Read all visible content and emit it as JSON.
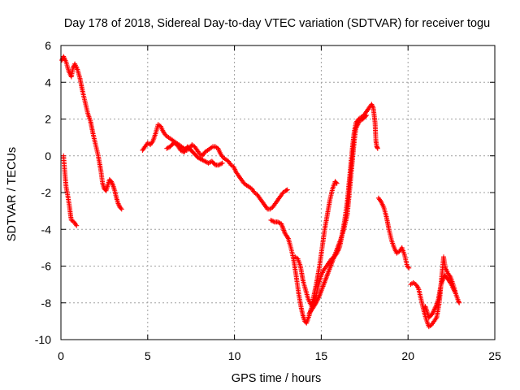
{
  "chart_data": {
    "type": "scatter",
    "title": "Day 178 of 2018, Sidereal Day-to-day VTEC variation (SDTVAR) for receiver togu",
    "xlabel": "GPS time / hours",
    "ylabel": "SDTVAR / TECUs",
    "xlim": [
      0,
      25
    ],
    "ylim": [
      -10,
      6
    ],
    "xticks": [
      0,
      5,
      10,
      15,
      20,
      25
    ],
    "yticks": [
      -10,
      -8,
      -6,
      -4,
      -2,
      0,
      2,
      4,
      6
    ],
    "xtick_labels": [
      "0",
      "5",
      "10",
      "15",
      "20",
      "25"
    ],
    "ytick_labels": [
      "-10",
      "-8",
      "-6",
      "-4",
      "-2",
      "0",
      "2",
      "4",
      "6"
    ],
    "grid": true,
    "marker": "plus",
    "color": "#ff0000",
    "series": [
      {
        "segments": [
          [
            [
              0.05,
              5.2
            ],
            [
              0.15,
              5.4
            ],
            [
              0.3,
              5.1
            ],
            [
              0.45,
              4.6
            ],
            [
              0.6,
              4.3
            ],
            [
              0.7,
              4.8
            ],
            [
              0.8,
              5.0
            ],
            [
              0.95,
              4.7
            ],
            [
              1.1,
              4.2
            ],
            [
              1.25,
              3.5
            ],
            [
              1.4,
              2.9
            ],
            [
              1.55,
              2.3
            ],
            [
              1.7,
              1.9
            ],
            [
              1.85,
              1.2
            ],
            [
              2.0,
              0.6
            ],
            [
              2.15,
              0.0
            ],
            [
              2.3,
              -0.8
            ],
            [
              2.4,
              -1.5
            ],
            [
              2.5,
              -1.8
            ],
            [
              2.6,
              -1.9
            ],
            [
              2.7,
              -1.6
            ],
            [
              2.8,
              -1.3
            ],
            [
              2.9,
              -1.4
            ],
            [
              3.0,
              -1.6
            ],
            [
              3.1,
              -1.9
            ],
            [
              3.2,
              -2.3
            ],
            [
              3.3,
              -2.6
            ],
            [
              3.4,
              -2.8
            ],
            [
              3.5,
              -2.9
            ]
          ],
          [
            [
              0.15,
              0.0
            ],
            [
              0.2,
              -0.6
            ],
            [
              0.25,
              -1.2
            ],
            [
              0.3,
              -1.7
            ],
            [
              0.4,
              -2.2
            ],
            [
              0.5,
              -2.8
            ],
            [
              0.55,
              -3.2
            ],
            [
              0.6,
              -3.5
            ],
            [
              0.75,
              -3.6
            ],
            [
              0.9,
              -3.8
            ]
          ],
          [
            [
              4.7,
              0.3
            ],
            [
              4.85,
              0.5
            ],
            [
              5.0,
              0.7
            ],
            [
              5.15,
              0.6
            ],
            [
              5.3,
              0.8
            ],
            [
              5.45,
              1.2
            ],
            [
              5.6,
              1.7
            ],
            [
              5.75,
              1.6
            ],
            [
              5.9,
              1.3
            ],
            [
              6.05,
              1.1
            ],
            [
              6.2,
              1.0
            ],
            [
              6.35,
              0.9
            ],
            [
              6.5,
              0.8
            ],
            [
              6.65,
              0.7
            ],
            [
              6.8,
              0.6
            ],
            [
              6.95,
              0.5
            ],
            [
              7.1,
              0.4
            ],
            [
              7.25,
              0.3
            ],
            [
              7.4,
              0.4
            ],
            [
              7.55,
              0.6
            ],
            [
              7.7,
              0.5
            ],
            [
              7.85,
              0.3
            ],
            [
              8.0,
              0.1
            ],
            [
              8.15,
              0.0
            ],
            [
              8.3,
              0.2
            ],
            [
              8.45,
              0.3
            ],
            [
              8.6,
              0.4
            ],
            [
              8.75,
              0.5
            ],
            [
              8.9,
              0.5
            ],
            [
              9.05,
              0.4
            ],
            [
              9.2,
              0.1
            ],
            [
              9.35,
              -0.1
            ],
            [
              9.5,
              -0.2
            ],
            [
              9.65,
              -0.3
            ],
            [
              9.8,
              -0.5
            ],
            [
              9.95,
              -0.6
            ],
            [
              10.1,
              -0.9
            ],
            [
              10.25,
              -1.1
            ],
            [
              10.4,
              -1.3
            ],
            [
              10.55,
              -1.5
            ],
            [
              10.7,
              -1.6
            ],
            [
              10.85,
              -1.7
            ],
            [
              11.0,
              -1.8
            ],
            [
              11.15,
              -2.0
            ],
            [
              11.3,
              -2.1
            ],
            [
              11.45,
              -2.3
            ],
            [
              11.6,
              -2.5
            ],
            [
              11.75,
              -2.7
            ],
            [
              11.9,
              -2.9
            ],
            [
              12.05,
              -2.9
            ],
            [
              12.2,
              -2.8
            ],
            [
              12.35,
              -2.6
            ],
            [
              12.5,
              -2.4
            ],
            [
              12.65,
              -2.2
            ],
            [
              12.8,
              -2.0
            ],
            [
              12.95,
              -1.9
            ],
            [
              13.05,
              -1.85
            ]
          ],
          [
            [
              6.1,
              0.4
            ],
            [
              6.3,
              0.5
            ],
            [
              6.5,
              0.7
            ],
            [
              6.7,
              0.6
            ],
            [
              6.9,
              0.3
            ],
            [
              7.1,
              0.2
            ],
            [
              7.3,
              0.5
            ],
            [
              7.5,
              0.3
            ],
            [
              7.7,
              0.1
            ],
            [
              7.9,
              -0.1
            ],
            [
              8.1,
              -0.2
            ],
            [
              8.3,
              -0.3
            ],
            [
              8.5,
              -0.4
            ],
            [
              8.7,
              -0.3
            ],
            [
              8.9,
              -0.5
            ],
            [
              9.1,
              -0.5
            ],
            [
              9.3,
              -0.4
            ]
          ],
          [
            [
              12.1,
              -3.5
            ],
            [
              12.3,
              -3.6
            ],
            [
              12.5,
              -3.6
            ],
            [
              12.7,
              -3.7
            ],
            [
              12.9,
              -4.2
            ],
            [
              13.1,
              -4.5
            ],
            [
              13.25,
              -5.0
            ],
            [
              13.4,
              -5.6
            ],
            [
              13.55,
              -6.5
            ],
            [
              13.7,
              -7.5
            ],
            [
              13.85,
              -8.3
            ],
            [
              13.95,
              -8.7
            ],
            [
              14.05,
              -9.0
            ],
            [
              14.15,
              -9.1
            ],
            [
              14.3,
              -8.7
            ],
            [
              14.45,
              -8.2
            ],
            [
              14.6,
              -7.5
            ],
            [
              14.75,
              -6.8
            ],
            [
              14.9,
              -6.0
            ],
            [
              15.05,
              -5.0
            ],
            [
              15.2,
              -4.0
            ],
            [
              15.35,
              -3.2
            ],
            [
              15.5,
              -2.4
            ],
            [
              15.65,
              -1.8
            ],
            [
              15.8,
              -1.4
            ],
            [
              15.9,
              -1.5
            ]
          ],
          [
            [
              13.5,
              -5.5
            ],
            [
              13.65,
              -5.6
            ],
            [
              13.8,
              -6.0
            ],
            [
              13.95,
              -6.8
            ],
            [
              14.1,
              -7.3
            ],
            [
              14.25,
              -7.8
            ],
            [
              14.4,
              -8.1
            ],
            [
              14.55,
              -8.0
            ],
            [
              14.7,
              -7.6
            ],
            [
              14.85,
              -7.0
            ],
            [
              15.0,
              -6.5
            ],
            [
              15.15,
              -6.2
            ],
            [
              15.3,
              -6.0
            ],
            [
              15.45,
              -5.8
            ],
            [
              15.6,
              -5.6
            ],
            [
              15.75,
              -5.5
            ],
            [
              15.9,
              -5.3
            ],
            [
              16.05,
              -5.0
            ],
            [
              16.2,
              -4.3
            ],
            [
              16.35,
              -3.5
            ],
            [
              16.5,
              -2.5
            ],
            [
              16.6,
              -1.5
            ],
            [
              16.7,
              -0.5
            ],
            [
              16.8,
              0.5
            ],
            [
              16.9,
              1.3
            ],
            [
              17.0,
              1.8
            ],
            [
              17.15,
              2.0
            ],
            [
              17.3,
              2.1
            ],
            [
              17.45,
              2.2
            ],
            [
              17.6,
              2.4
            ],
            [
              17.75,
              2.6
            ],
            [
              17.9,
              2.8
            ],
            [
              18.0,
              2.6
            ],
            [
              18.1,
              1.8
            ],
            [
              18.15,
              0.8
            ],
            [
              18.2,
              0.5
            ],
            [
              18.25,
              0.4
            ]
          ],
          [
            [
              14.3,
              -8.6
            ],
            [
              14.5,
              -8.3
            ],
            [
              14.7,
              -8.0
            ],
            [
              14.9,
              -7.6
            ],
            [
              15.1,
              -7.1
            ],
            [
              15.3,
              -6.6
            ],
            [
              15.5,
              -6.1
            ],
            [
              15.7,
              -5.6
            ],
            [
              15.9,
              -5.1
            ],
            [
              16.1,
              -4.6
            ],
            [
              16.3,
              -4.0
            ],
            [
              16.5,
              -3.2
            ],
            [
              16.6,
              -2.2
            ],
            [
              16.7,
              -1.2
            ],
            [
              16.8,
              -0.2
            ],
            [
              16.9,
              0.8
            ],
            [
              17.0,
              1.5
            ],
            [
              17.2,
              1.9
            ],
            [
              17.4,
              2.0
            ],
            [
              17.6,
              2.2
            ]
          ],
          [
            [
              18.3,
              -2.3
            ],
            [
              18.45,
              -2.5
            ],
            [
              18.6,
              -2.8
            ],
            [
              18.75,
              -3.3
            ],
            [
              18.9,
              -4.0
            ],
            [
              19.05,
              -4.6
            ],
            [
              19.2,
              -5.0
            ],
            [
              19.35,
              -5.3
            ],
            [
              19.5,
              -5.2
            ],
            [
              19.65,
              -5.0
            ],
            [
              19.8,
              -5.4
            ],
            [
              19.95,
              -6.0
            ],
            [
              20.05,
              -6.1
            ]
          ],
          [
            [
              20.15,
              -7.0
            ],
            [
              20.3,
              -6.9
            ],
            [
              20.45,
              -7.0
            ],
            [
              20.6,
              -7.2
            ],
            [
              20.75,
              -7.8
            ],
            [
              20.9,
              -8.4
            ],
            [
              21.05,
              -8.9
            ],
            [
              21.2,
              -9.3
            ],
            [
              21.35,
              -9.2
            ],
            [
              21.5,
              -9.0
            ],
            [
              21.65,
              -8.8
            ],
            [
              21.8,
              -8.0
            ],
            [
              21.95,
              -6.5
            ],
            [
              22.05,
              -5.5
            ],
            [
              22.15,
              -6.1
            ],
            [
              22.3,
              -6.4
            ],
            [
              22.45,
              -6.6
            ],
            [
              22.6,
              -7.0
            ],
            [
              22.75,
              -7.5
            ],
            [
              22.9,
              -7.9
            ],
            [
              22.95,
              -8.0
            ]
          ],
          [
            [
              21.0,
              -8.2
            ],
            [
              21.2,
              -8.8
            ],
            [
              21.4,
              -8.6
            ],
            [
              21.6,
              -8.2
            ],
            [
              21.75,
              -7.8
            ],
            [
              21.9,
              -7.0
            ],
            [
              22.1,
              -6.5
            ],
            [
              22.3,
              -6.7
            ],
            [
              22.5,
              -7.0
            ],
            [
              22.7,
              -7.4
            ]
          ]
        ]
      }
    ]
  }
}
